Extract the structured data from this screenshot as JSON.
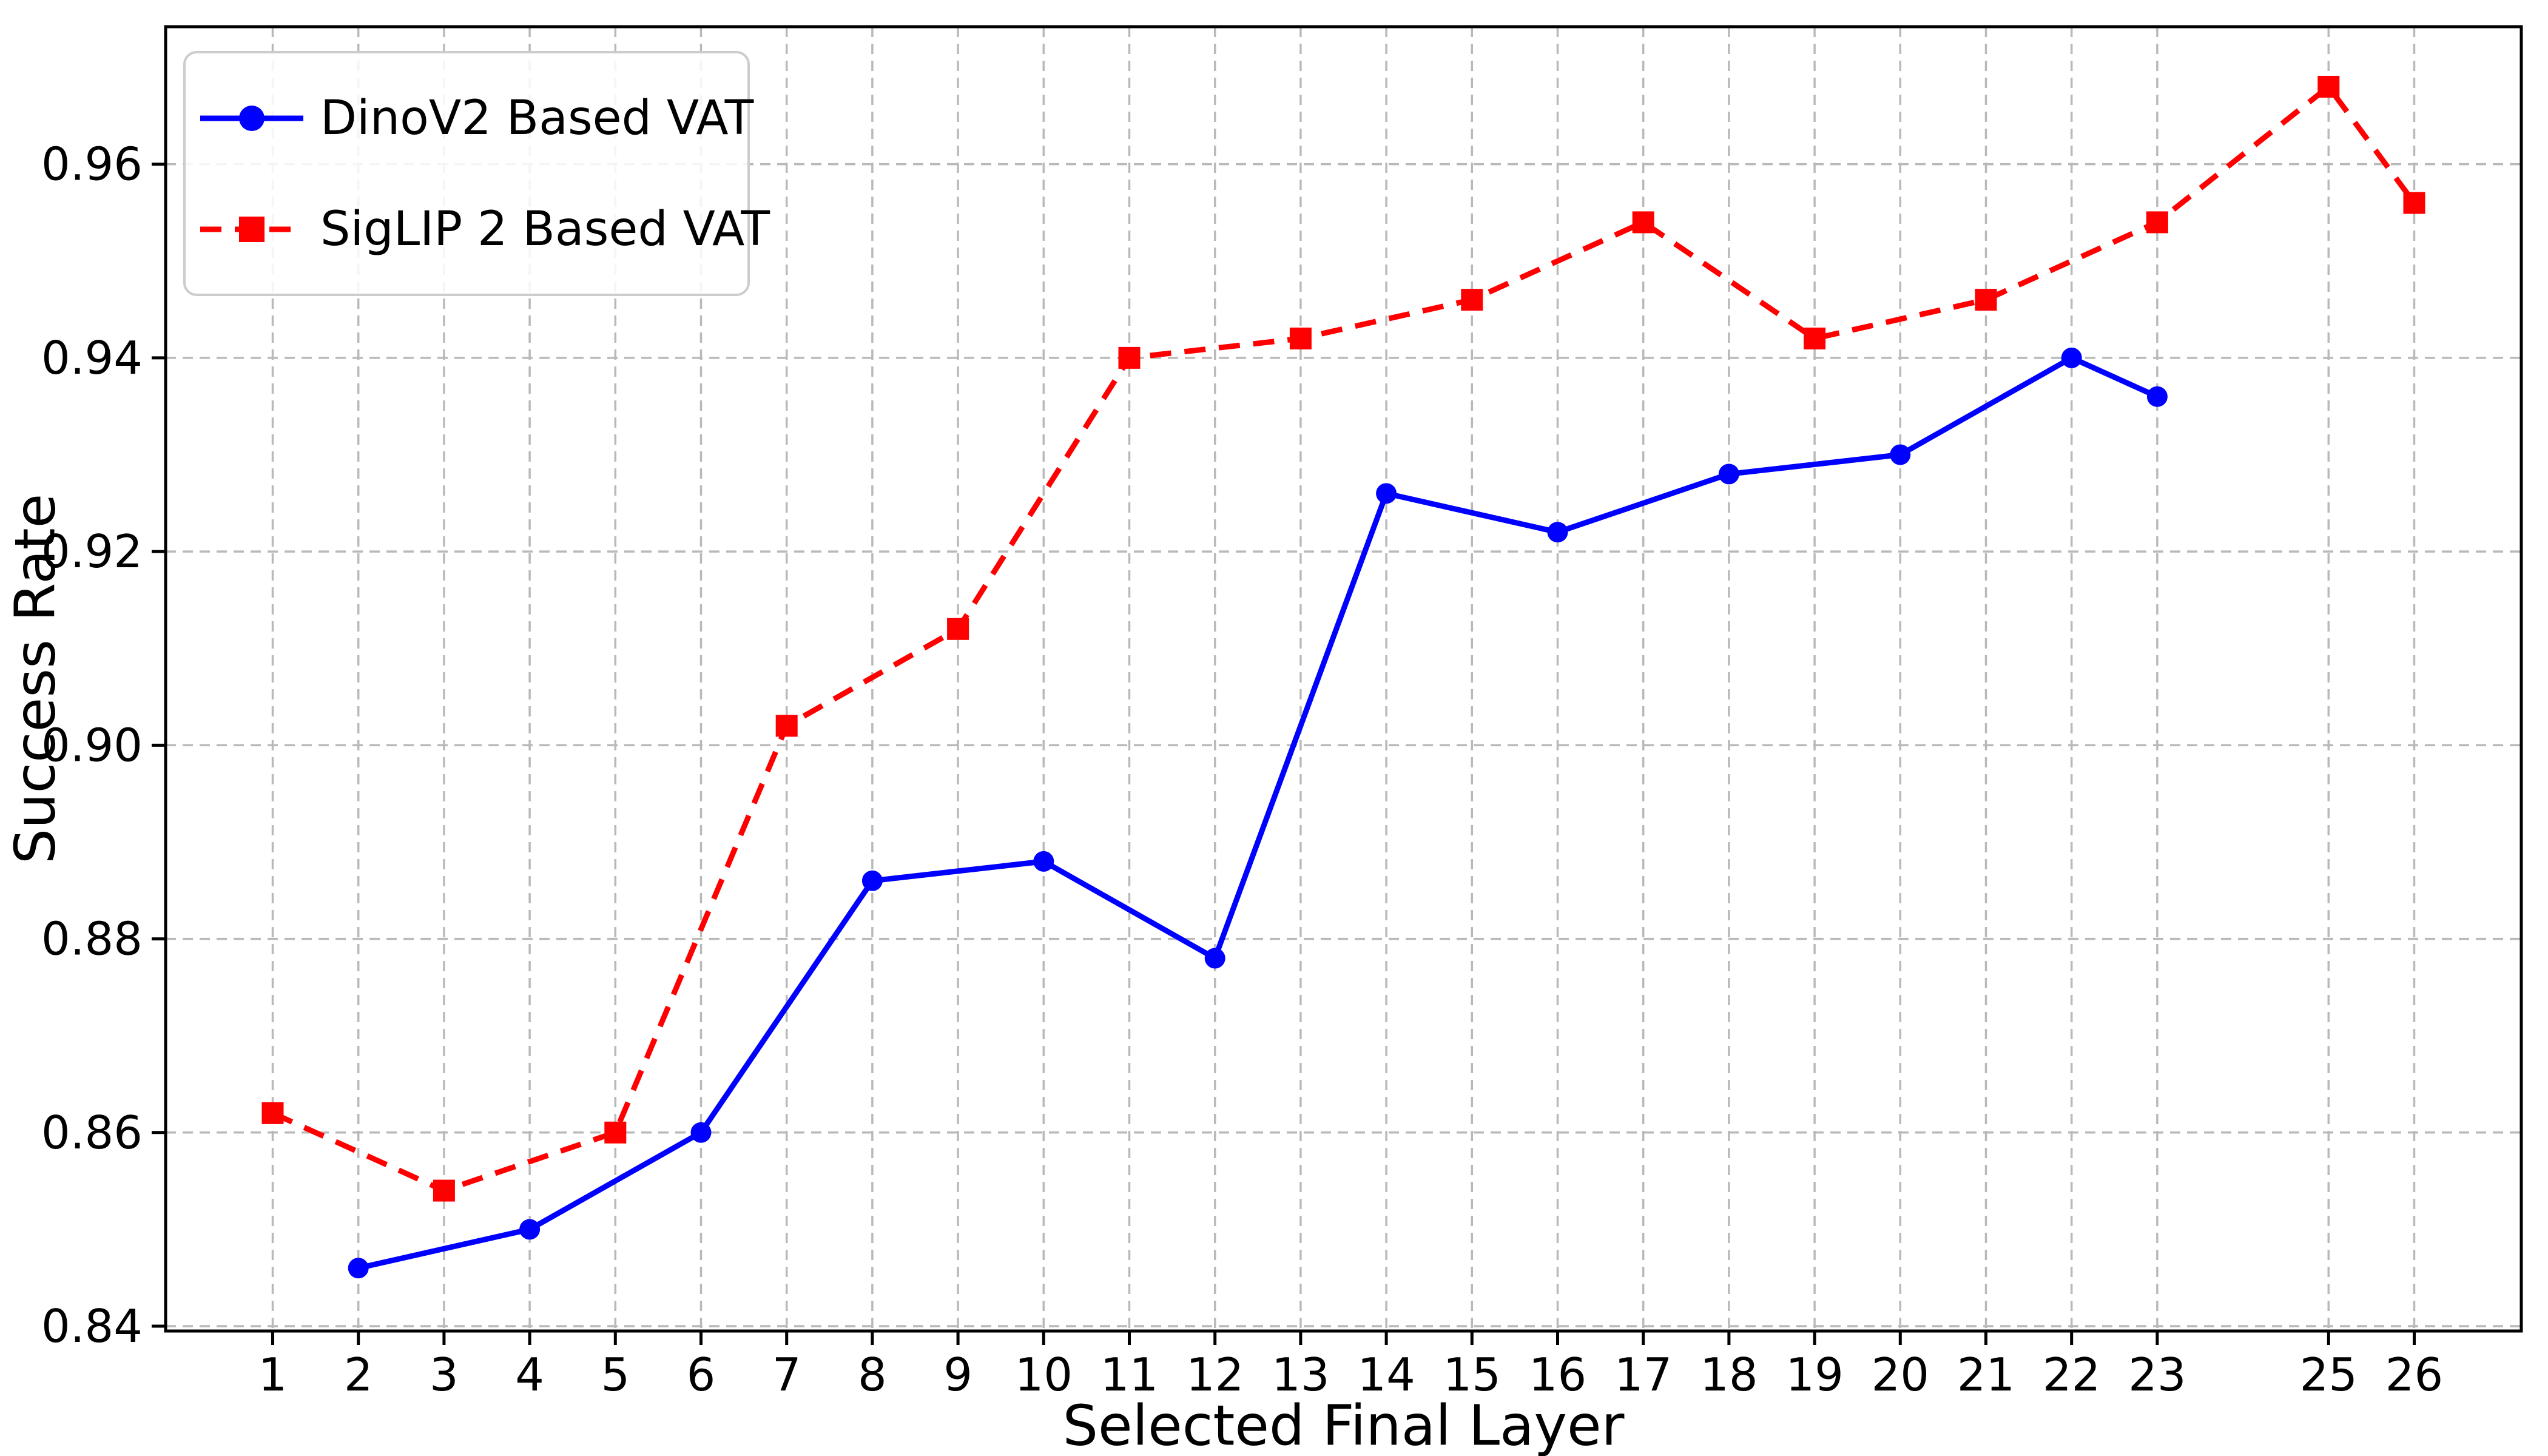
{
  "chart_data": {
    "type": "line",
    "title": "",
    "xlabel": "Selected Final Layer",
    "ylabel": "Success Rate",
    "x_ticks": [
      1,
      2,
      3,
      4,
      5,
      6,
      7,
      8,
      9,
      10,
      11,
      12,
      13,
      14,
      15,
      16,
      17,
      18,
      19,
      20,
      21,
      22,
      23,
      25,
      26
    ],
    "y_ticks": [
      0.84,
      0.86,
      0.88,
      0.9,
      0.92,
      0.94,
      0.96
    ],
    "y_tick_labels": [
      "0.84",
      "0.86",
      "0.88",
      "0.90",
      "0.92",
      "0.94",
      "0.96"
    ],
    "xlim": [
      -0.25,
      27.25
    ],
    "ylim": [
      0.8395,
      0.9742
    ],
    "grid": true,
    "legend_position": "upper left",
    "series": [
      {
        "name": "DinoV2 Based VAT",
        "color": "#0000ff",
        "line_style": "solid",
        "marker": "circle",
        "x": [
          2,
          4,
          6,
          8,
          10,
          12,
          14,
          16,
          18,
          20,
          22,
          23
        ],
        "y": [
          0.846,
          0.85,
          0.86,
          0.886,
          0.888,
          0.878,
          0.926,
          0.922,
          0.928,
          0.93,
          0.94,
          0.936
        ]
      },
      {
        "name": "SigLIP 2 Based VAT",
        "color": "#ff0000",
        "line_style": "dashed",
        "marker": "square",
        "x": [
          1,
          3,
          5,
          7,
          9,
          11,
          13,
          15,
          17,
          19,
          21,
          23,
          25,
          26
        ],
        "y": [
          0.862,
          0.854,
          0.86,
          0.902,
          0.912,
          0.94,
          0.942,
          0.946,
          0.954,
          0.942,
          0.946,
          0.954,
          0.968,
          0.956
        ]
      }
    ],
    "colors": {
      "background": "#ffffff",
      "grid": "#b9b9b9",
      "spine": "#000000",
      "text": "#000000",
      "legend_border": "#cccccc",
      "legend_fill": "#ffffff"
    }
  }
}
